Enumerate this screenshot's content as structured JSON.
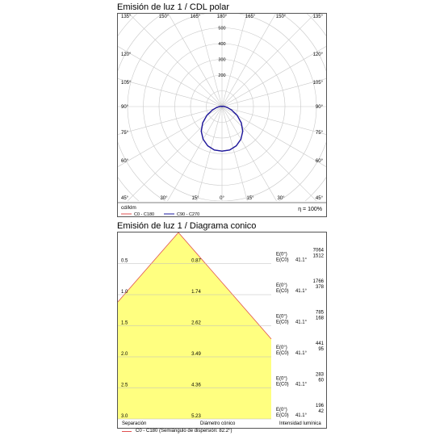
{
  "polar": {
    "title": "Emisión de luz 1 / CDL polar",
    "unit": "cd/klm",
    "efficiency": "η = 100%",
    "radial_ticks": [
      "200",
      "300",
      "400",
      "500"
    ],
    "angle_labels_left": [
      "135°",
      "120°",
      "105°",
      "90°",
      "75°",
      "60°",
      "45°"
    ],
    "angle_labels_right": [
      "135°",
      "120°",
      "105°",
      "90°",
      "75°",
      "60°",
      "45°"
    ],
    "angle_labels_top": [
      "150°",
      "165°",
      "180°",
      "165°",
      "150°"
    ],
    "angle_labels_bottom": [
      "30°",
      "15°",
      "0°",
      "15°",
      "30°"
    ],
    "legend": [
      {
        "label": "C0 - C180",
        "color": "#e05050"
      },
      {
        "label": "C90 - C270",
        "color": "#1a1aa0"
      }
    ],
    "curve_c90": {
      "angles_deg": [
        0,
        10,
        20,
        30,
        40,
        50,
        60,
        70,
        80,
        90,
        100,
        110,
        120,
        130,
        140,
        150,
        160,
        170,
        180
      ],
      "intensity_cdklm": [
        283,
        280,
        265,
        240,
        205,
        160,
        110,
        65,
        35,
        18,
        10,
        6,
        3,
        2,
        1,
        0,
        0,
        0,
        0
      ]
    },
    "curve_c0": {
      "angles_deg": [
        0,
        10,
        20,
        30,
        40,
        50,
        60,
        70,
        80,
        90,
        100,
        110,
        120,
        130,
        140,
        150,
        160,
        170,
        180
      ],
      "intensity_cdklm": [
        283,
        280,
        265,
        240,
        205,
        160,
        110,
        65,
        35,
        18,
        10,
        6,
        3,
        2,
        1,
        0,
        0,
        0,
        0
      ]
    }
  },
  "cone": {
    "title": "Emisión de luz 1 / Diagrama conico",
    "half_angle_deg": 41.1,
    "rows": [
      {
        "sep": "0.5",
        "diam": "0.87",
        "e0": "E(0°)",
        "ec0": "E(C0)",
        "angle": "41.1°",
        "v1": "7064",
        "v2": "1512"
      },
      {
        "sep": "1.0",
        "diam": "1.74",
        "e0": "E(0°)",
        "ec0": "E(C0)",
        "angle": "41.1°",
        "v1": "1766",
        "v2": "378"
      },
      {
        "sep": "1.5",
        "diam": "2.62",
        "e0": "E(0°)",
        "ec0": "E(C0)",
        "angle": "41.1°",
        "v1": "785",
        "v2": "168"
      },
      {
        "sep": "2.0",
        "diam": "3.49",
        "e0": "E(0°)",
        "ec0": "E(C0)",
        "angle": "41.1°",
        "v1": "441",
        "v2": "95"
      },
      {
        "sep": "2.5",
        "diam": "4.36",
        "e0": "E(0°)",
        "ec0": "E(C0)",
        "angle": "41.1°",
        "v1": "283",
        "v2": "60"
      },
      {
        "sep": "3.0",
        "diam": "5.23",
        "e0": "E(0°)",
        "ec0": "E(C0)",
        "angle": "41.1°",
        "v1": "196",
        "v2": "42"
      }
    ],
    "footer": {
      "separation": "Separación",
      "diameter": "Diámetro cónico",
      "intensity": "Intensidad lumínica",
      "legend": "C0 - C180 (Semiángulo de dispersión: 82.2°)"
    }
  }
}
